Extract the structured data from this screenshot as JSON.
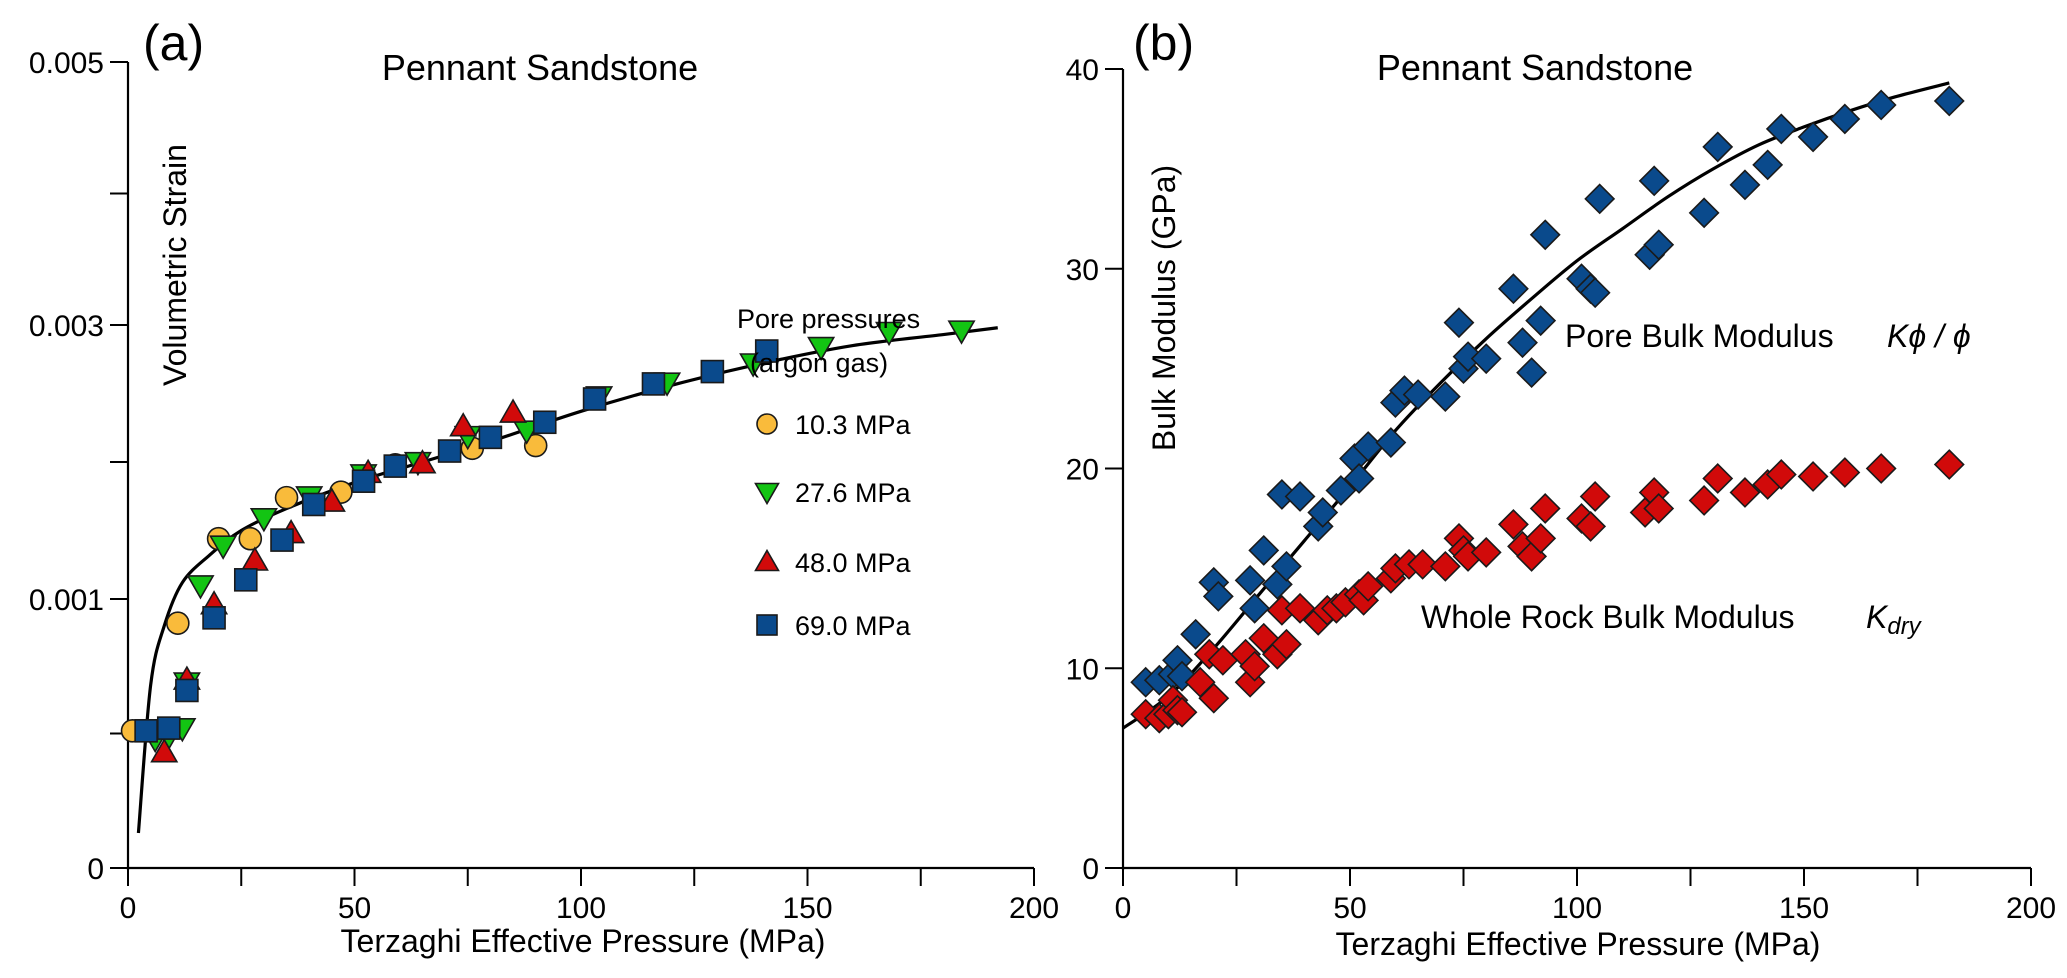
{
  "chart_data": [
    {
      "type": "scatter",
      "panel_label": "(a)",
      "title": "Pennant Sandstone",
      "xlabel": "Terzaghi Effective Pressure  (MPa)",
      "ylabel": "Volumetric Strain",
      "xlim": [
        0,
        200
      ],
      "xticks": [
        "0",
        "50",
        "100",
        "150",
        "200"
      ],
      "yticks": [
        "0",
        "0.001",
        "0.003",
        "0.005"
      ],
      "ylim": [
        0,
        0.005
      ],
      "legend": {
        "title_line1": "Pore pressures",
        "title_line2": "(argon gas)",
        "position": "right-center"
      },
      "series": [
        {
          "name": "10.3 MPa",
          "marker": "circle",
          "color": "#f9bb3b",
          "points": [
            [
              1,
              0.00051
            ],
            [
              11,
              0.00091
            ],
            [
              20,
              0.00144
            ],
            [
              27,
              0.00144
            ],
            [
              35,
              0.00174
            ],
            [
              47,
              0.00178
            ],
            [
              59,
              0.00198
            ],
            [
              76,
              0.0021
            ],
            [
              90,
              0.00212
            ]
          ]
        },
        {
          "name": "27.6 MPa",
          "marker": "triangle-down",
          "color": "#13c413",
          "points": [
            [
              6,
              0.00048
            ],
            [
              9,
              0.00049
            ],
            [
              12,
              0.00052
            ],
            [
              13,
              0.00069
            ],
            [
              16,
              0.0011
            ],
            [
              21,
              0.00139
            ],
            [
              30,
              0.00159
            ],
            [
              40,
              0.00175
            ],
            [
              52,
              0.00191
            ],
            [
              64,
              0.002
            ],
            [
              75,
              0.00219
            ],
            [
              88,
              0.00223
            ],
            [
              104,
              0.00248
            ],
            [
              119,
              0.00258
            ],
            [
              138,
              0.00272
            ],
            [
              153,
              0.00284
            ],
            [
              168,
              0.00295
            ],
            [
              184,
              0.00296
            ]
          ]
        },
        {
          "name": "48.0 MPa",
          "marker": "triangle-up",
          "color": "#d10a0a",
          "points": [
            [
              8,
              0.00043
            ],
            [
              13,
              0.0007
            ],
            [
              19,
              0.00098
            ],
            [
              28,
              0.00128
            ],
            [
              36,
              0.00148
            ],
            [
              45,
              0.00171
            ],
            [
              53,
              0.00192
            ],
            [
              65,
              0.00199
            ],
            [
              74,
              0.00226
            ],
            [
              85,
              0.00236
            ]
          ]
        },
        {
          "name": "69.0 MPa",
          "marker": "square",
          "color": "#0a4a8c",
          "points": [
            [
              4,
              0.00051
            ],
            [
              9,
              0.00052
            ],
            [
              13,
              0.00066
            ],
            [
              19,
              0.00093
            ],
            [
              26,
              0.00114
            ],
            [
              34,
              0.00143
            ],
            [
              41,
              0.00169
            ],
            [
              52,
              0.00186
            ],
            [
              59,
              0.00197
            ],
            [
              71,
              0.00208
            ],
            [
              80,
              0.00218
            ],
            [
              92,
              0.00229
            ],
            [
              103,
              0.00246
            ],
            [
              116,
              0.00257
            ],
            [
              129,
              0.00266
            ],
            [
              141,
              0.00281
            ]
          ]
        }
      ],
      "fit_curve": {
        "color": "#000000",
        "points": [
          [
            2.3,
            0.00013
          ],
          [
            5,
            0.00068
          ],
          [
            8,
            0.0009
          ],
          [
            12,
            0.00112
          ],
          [
            18,
            0.00132
          ],
          [
            25,
            0.0015
          ],
          [
            35,
            0.00166
          ],
          [
            50,
            0.00185
          ],
          [
            65,
            0.002
          ],
          [
            80,
            0.00215
          ],
          [
            100,
            0.00237
          ],
          [
            120,
            0.00256
          ],
          [
            140,
            0.00272
          ],
          [
            160,
            0.00285
          ],
          [
            180,
            0.00293
          ],
          [
            192,
            0.00298
          ]
        ]
      }
    },
    {
      "type": "scatter",
      "panel_label": "(b)",
      "title": "Pennant Sandstone",
      "xlabel": "Terzaghi Effective Pressure  (MPa)",
      "ylabel": "Bulk Modulus  (GPa)",
      "xlim": [
        0,
        200
      ],
      "ylim": [
        0,
        40
      ],
      "xticks": [
        "0",
        "50",
        "100",
        "150",
        "200"
      ],
      "yticks": [
        "0",
        "10",
        "20",
        "30",
        "40"
      ],
      "annotations": [
        {
          "text": "Pore Bulk Modulus",
          "symbol": "Kϕ / ϕ"
        },
        {
          "text": "Whole Rock Bulk Modulus",
          "symbol_main": "K",
          "symbol_sub": "dry"
        }
      ],
      "series": [
        {
          "name": "Pore Bulk Modulus Kϕ/ϕ",
          "marker": "diamond",
          "color": "#0a4a8c",
          "points": [
            [
              5,
              9.3
            ],
            [
              8,
              9.4
            ],
            [
              11,
              9.7
            ],
            [
              12,
              10.4
            ],
            [
              13,
              9.6
            ],
            [
              16,
              11.7
            ],
            [
              20,
              14.3
            ],
            [
              21,
              13.6
            ],
            [
              28,
              14.4
            ],
            [
              29,
              13.0
            ],
            [
              31,
              15.9
            ],
            [
              34,
              14.2
            ],
            [
              35,
              18.7
            ],
            [
              36,
              15.1
            ],
            [
              39,
              18.6
            ],
            [
              43,
              17.1
            ],
            [
              44,
              17.8
            ],
            [
              48,
              18.9
            ],
            [
              51,
              20.5
            ],
            [
              52,
              19.5
            ],
            [
              54,
              21.1
            ],
            [
              59,
              21.3
            ],
            [
              60,
              23.3
            ],
            [
              62,
              23.9
            ],
            [
              65,
              23.7
            ],
            [
              71,
              23.6
            ],
            [
              74,
              27.3
            ],
            [
              75,
              25.0
            ],
            [
              76,
              25.6
            ],
            [
              80,
              25.5
            ],
            [
              86,
              29.0
            ],
            [
              88,
              26.3
            ],
            [
              90,
              24.8
            ],
            [
              92,
              27.4
            ],
            [
              93,
              31.7
            ],
            [
              101,
              29.5
            ],
            [
              103,
              29.0
            ],
            [
              104,
              28.8
            ],
            [
              105,
              33.5
            ],
            [
              116,
              30.7
            ],
            [
              117,
              34.4
            ],
            [
              118,
              31.2
            ],
            [
              128,
              32.8
            ],
            [
              131,
              36.1
            ],
            [
              137,
              34.2
            ],
            [
              142,
              35.2
            ],
            [
              145,
              37.0
            ],
            [
              152,
              36.6
            ],
            [
              159,
              37.5
            ],
            [
              167,
              38.2
            ],
            [
              182,
              38.4
            ]
          ]
        },
        {
          "name": "Whole Rock Bulk Modulus Kdry",
          "marker": "diamond",
          "color": "#d10a0a",
          "points": [
            [
              5,
              7.7
            ],
            [
              8,
              7.5
            ],
            [
              10,
              7.7
            ],
            [
              11,
              8.4
            ],
            [
              12,
              7.9
            ],
            [
              13,
              7.8
            ],
            [
              17,
              9.3
            ],
            [
              19,
              10.7
            ],
            [
              20,
              8.5
            ],
            [
              22,
              10.4
            ],
            [
              27,
              10.7
            ],
            [
              28,
              9.3
            ],
            [
              29,
              10.1
            ],
            [
              31,
              11.5
            ],
            [
              34,
              10.7
            ],
            [
              35,
              12.9
            ],
            [
              36,
              11.2
            ],
            [
              39,
              13.0
            ],
            [
              43,
              12.4
            ],
            [
              45,
              12.9
            ],
            [
              47,
              13.0
            ],
            [
              49,
              13.3
            ],
            [
              52,
              13.7
            ],
            [
              53,
              13.4
            ],
            [
              54,
              14.1
            ],
            [
              59,
              14.5
            ],
            [
              60,
              15.0
            ],
            [
              63,
              15.2
            ],
            [
              66,
              15.2
            ],
            [
              71,
              15.1
            ],
            [
              74,
              16.5
            ],
            [
              75,
              15.9
            ],
            [
              76,
              15.6
            ],
            [
              80,
              15.8
            ],
            [
              86,
              17.2
            ],
            [
              88,
              16.1
            ],
            [
              90,
              15.6
            ],
            [
              92,
              16.5
            ],
            [
              93,
              18.0
            ],
            [
              101,
              17.5
            ],
            [
              103,
              17.1
            ],
            [
              104,
              18.6
            ],
            [
              115,
              17.8
            ],
            [
              117,
              18.8
            ],
            [
              118,
              18.0
            ],
            [
              128,
              18.4
            ],
            [
              131,
              19.5
            ],
            [
              137,
              18.8
            ],
            [
              142,
              19.2
            ],
            [
              145,
              19.7
            ],
            [
              152,
              19.6
            ],
            [
              159,
              19.8
            ],
            [
              167,
              20.0
            ],
            [
              182,
              20.2
            ]
          ]
        }
      ],
      "fit_curve": {
        "color": "#000000",
        "points": [
          [
            0,
            7.0
          ],
          [
            10,
            8.6
          ],
          [
            20,
            11.0
          ],
          [
            30,
            13.7
          ],
          [
            40,
            16.4
          ],
          [
            50,
            19.1
          ],
          [
            60,
            21.9
          ],
          [
            70,
            24.3
          ],
          [
            80,
            26.5
          ],
          [
            90,
            28.5
          ],
          [
            100,
            30.4
          ],
          [
            110,
            32.0
          ],
          [
            120,
            33.6
          ],
          [
            130,
            35.0
          ],
          [
            140,
            36.2
          ],
          [
            150,
            37.1
          ],
          [
            160,
            37.9
          ],
          [
            170,
            38.6
          ],
          [
            182,
            39.3
          ]
        ]
      }
    }
  ]
}
